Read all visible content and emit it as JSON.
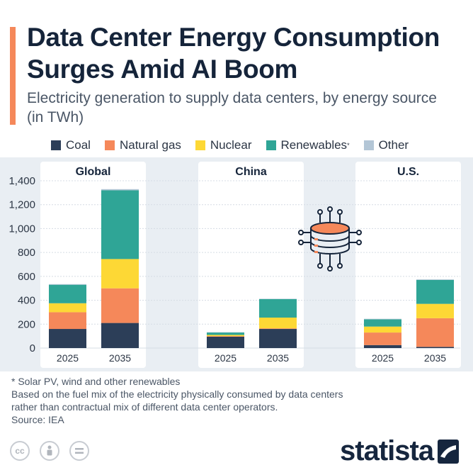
{
  "header": {
    "title": "Data Center Energy Consumption Surges Amid AI Boom",
    "subtitle": "Electricity generation to supply data centers, by energy source (in TWh)"
  },
  "legend": [
    {
      "label": "Coal",
      "color": "#2c3e58"
    },
    {
      "label": "Natural gas",
      "color": "#f5885a"
    },
    {
      "label": "Nuclear",
      "color": "#fdd835"
    },
    {
      "label": "Renewables",
      "marker": "*",
      "color": "#2fa596"
    },
    {
      "label": "Other",
      "color": "#b3c6d6"
    }
  ],
  "chart_data": {
    "type": "bar",
    "stacked": true,
    "ylim": [
      0,
      1400
    ],
    "yticks": [
      "0",
      "200",
      "400",
      "600",
      "800",
      "1,000",
      "1,200",
      "1,400"
    ],
    "groups": [
      {
        "name": "Global",
        "bars": [
          {
            "year": "2025",
            "values": {
              "Coal": 160,
              "Natural gas": 140,
              "Nuclear": 75,
              "Renewables": 155,
              "Other": 5
            }
          },
          {
            "year": "2035",
            "values": {
              "Coal": 210,
              "Natural gas": 290,
              "Nuclear": 245,
              "Renewables": 575,
              "Other": 10
            }
          }
        ]
      },
      {
        "name": "China",
        "bars": [
          {
            "year": "2025",
            "values": {
              "Coal": 95,
              "Natural gas": 5,
              "Nuclear": 10,
              "Renewables": 20,
              "Other": 3
            }
          },
          {
            "year": "2035",
            "values": {
              "Coal": 160,
              "Natural gas": 5,
              "Nuclear": 90,
              "Renewables": 155,
              "Other": 3
            }
          }
        ]
      },
      {
        "name": "U.S.",
        "bars": [
          {
            "year": "2025",
            "values": {
              "Coal": 25,
              "Natural gas": 105,
              "Nuclear": 50,
              "Renewables": 60,
              "Other": 5
            }
          },
          {
            "year": "2035",
            "values": {
              "Coal": 10,
              "Natural gas": 240,
              "Nuclear": 120,
              "Renewables": 200,
              "Other": 5
            }
          }
        ]
      }
    ]
  },
  "footnote": {
    "line1": "* Solar PV, wind and other renewables",
    "line2": "Based on the fuel mix of the electricity physically consumed by data centers",
    "line3": "rather than contractual mix of different data center operators."
  },
  "source": "Source: IEA",
  "brand": {
    "name": "statista"
  },
  "icons": [
    "cc-icon",
    "attribution-icon",
    "no-derivatives-icon",
    "data-server-icon",
    "statista-logo-icon"
  ]
}
